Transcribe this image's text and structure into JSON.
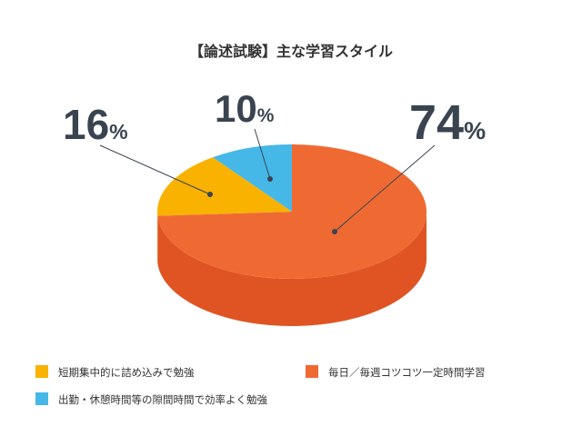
{
  "chart_data": {
    "type": "pie",
    "title": "【論述試験】主な学習スタイル",
    "unit": "%",
    "slices": [
      {
        "label": "毎日／毎週コツコツ一定時間学習",
        "value": 74,
        "color": "#ef6a33",
        "side_color": "#e05424"
      },
      {
        "label": "短期集中的に詰め込みで勉強",
        "value": 16,
        "color": "#f9b200",
        "side_color": "#e59f00"
      },
      {
        "label": "出勤・休憩時間等の隙間時間で効率よく勉強",
        "value": 10,
        "color": "#45b8e8",
        "side_color": "#2f9fd0"
      }
    ],
    "legend_placement": "bottom"
  }
}
